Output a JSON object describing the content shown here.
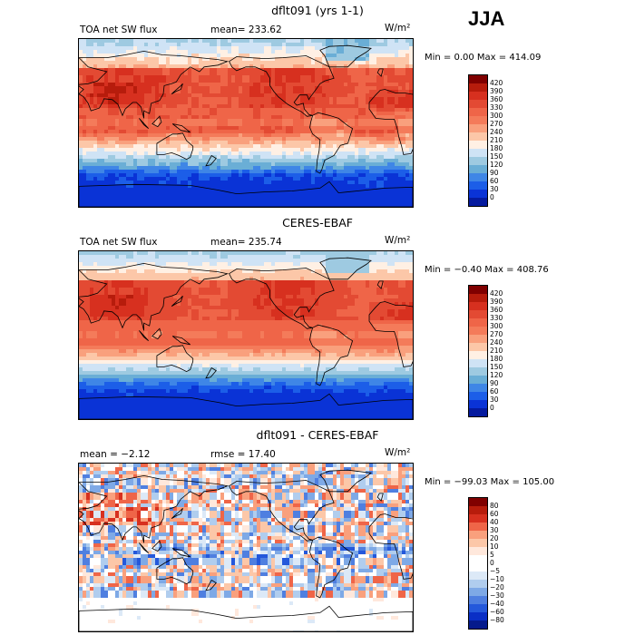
{
  "season": "JJA",
  "units": "W/m²",
  "panels": [
    {
      "id": "model",
      "title": "dflt091 (yrs 1-1)",
      "left_label": "TOA net SW flux",
      "stat_label": "mean= 233.62",
      "minmax": "Min =    0.00 Max = 414.09",
      "scale": "abs",
      "colorbar_labels": [
        "420",
        "390",
        "360",
        "330",
        "300",
        "270",
        "240",
        "210",
        "180",
        "150",
        "120",
        "90",
        "60",
        "30",
        "0"
      ]
    },
    {
      "id": "obs",
      "title": "CERES-EBAF",
      "left_label": "TOA net SW flux",
      "stat_label": "mean= 235.74",
      "minmax": "Min =  −0.40 Max = 408.76",
      "scale": "abs",
      "colorbar_labels": [
        "420",
        "390",
        "360",
        "330",
        "300",
        "270",
        "240",
        "210",
        "180",
        "150",
        "120",
        "90",
        "60",
        "30",
        "0"
      ]
    },
    {
      "id": "diff",
      "title": "dflt091 - CERES-EBAF",
      "left_label": "mean =   −2.12",
      "stat_label": "rmse =  17.40",
      "minmax": "Min = −99.03 Max = 105.00",
      "scale": "diff",
      "colorbar_labels": [
        "80",
        "60",
        "40",
        "30",
        "20",
        "10",
        "5",
        "0",
        "−5",
        "−10",
        "−20",
        "−30",
        "−40",
        "−60",
        "−80"
      ]
    }
  ],
  "colors": {
    "abs": [
      "#800000",
      "#b71c0c",
      "#d7301f",
      "#e34a33",
      "#ef6548",
      "#f47b5a",
      "#f9a07d",
      "#fcc7a8",
      "#fff0e4",
      "#cfe3f5",
      "#9ecae1",
      "#6aaed6",
      "#3f86e6",
      "#1c5ee8",
      "#0a33d6",
      "#051a9e"
    ],
    "diff": [
      "#800000",
      "#b71c0c",
      "#d7301f",
      "#ef6548",
      "#f9a07d",
      "#fcc7a8",
      "#ffe8dc",
      "#ffffff",
      "#ffffff",
      "#dce9f7",
      "#b0cdee",
      "#7ea9e6",
      "#4f7fe0",
      "#2458db",
      "#0a2fc6",
      "#051a8c"
    ]
  },
  "chart_data": [
    {
      "type": "heatmap",
      "title": "dflt091 (yrs 1-1)",
      "subtitle": "TOA net SW flux",
      "season": "JJA",
      "units": "W/m2",
      "mean": 233.62,
      "min": 0.0,
      "max": 414.09,
      "levels": [
        0,
        30,
        60,
        90,
        120,
        150,
        180,
        210,
        240,
        270,
        300,
        330,
        360,
        390,
        420
      ]
    },
    {
      "type": "heatmap",
      "title": "CERES-EBAF",
      "subtitle": "TOA net SW flux",
      "season": "JJA",
      "units": "W/m2",
      "mean": 235.74,
      "min": -0.4,
      "max": 408.76,
      "levels": [
        0,
        30,
        60,
        90,
        120,
        150,
        180,
        210,
        240,
        270,
        300,
        330,
        360,
        390,
        420
      ]
    },
    {
      "type": "heatmap",
      "title": "dflt091 - CERES-EBAF",
      "season": "JJA",
      "units": "W/m2",
      "mean": -2.12,
      "rmse": 17.4,
      "min": -99.03,
      "max": 105.0,
      "levels": [
        -80,
        -60,
        -40,
        -30,
        -20,
        -10,
        -5,
        0,
        5,
        10,
        20,
        30,
        40,
        60,
        80
      ]
    }
  ]
}
